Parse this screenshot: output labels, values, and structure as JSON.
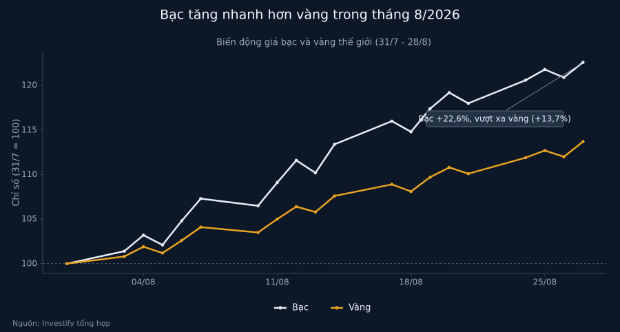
{
  "chart_data": {
    "type": "line",
    "title": "Bạc tăng nhanh hơn vàng trong tháng 8/2026",
    "subtitle": "Biến động giá bạc và vàng thế giới (31/7 - 28/8)",
    "y_label": "Chỉ số (31/7 = 100)",
    "source": "Nguồn: Investify tổng hợp",
    "x": [
      "31/07",
      "03/08",
      "04/08",
      "05/08",
      "06/08",
      "07/08",
      "10/08",
      "11/08",
      "12/08",
      "13/08",
      "14/08",
      "17/08",
      "18/08",
      "19/08",
      "20/08",
      "21/08",
      "24/08",
      "25/08",
      "26/08",
      "27/08"
    ],
    "series": [
      {
        "name": "Bạc",
        "color": "#e6edf6",
        "values": [
          100,
          101.4,
          103.2,
          102.1,
          104.8,
          107.3,
          106.5,
          109.1,
          111.6,
          110.2,
          113.4,
          116,
          114.8,
          117.4,
          119.2,
          118,
          120.6,
          121.8,
          120.9,
          122.6
        ]
      },
      {
        "name": "Vàng",
        "color": "#e8a321",
        "values": [
          100,
          100.8,
          101.9,
          101.2,
          102.6,
          104.1,
          103.5,
          105,
          106.4,
          105.8,
          107.6,
          108.9,
          108.1,
          109.7,
          110.8,
          110.1,
          111.9,
          112.7,
          112,
          113.7
        ]
      }
    ],
    "xticks": [
      "04/08",
      "11/08",
      "18/08",
      "25/08"
    ],
    "ylim": [
      98.9,
      123.8
    ],
    "yticks": [
      100,
      105,
      110,
      115,
      120
    ],
    "reference_line": 100,
    "annotation": {
      "text": "Bạc +22,6%, vượt xa vàng (+13,7%)",
      "x": "27/08",
      "y": 122.6
    },
    "legend": "bottom"
  }
}
